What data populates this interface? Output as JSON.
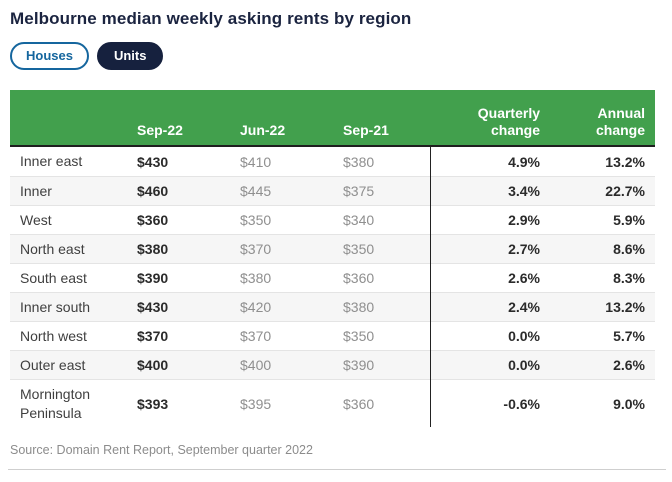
{
  "title": "Melbourne median weekly asking rents by region",
  "toggles": {
    "houses_label": "Houses",
    "units_label": "Units",
    "selected": "Units"
  },
  "chart_data": {
    "type": "table",
    "title": "Melbourne median weekly asking rents by region",
    "columns": [
      "",
      "Sep-22",
      "Jun-22",
      "Sep-21",
      "Quarterly change",
      "Annual change"
    ],
    "header": {
      "sep22": "Sep-22",
      "jun22": "Jun-22",
      "sep21": "Sep-21",
      "quarterly": "Quarterly\nchange",
      "annual": "Annual\nchange"
    },
    "rows": [
      {
        "region": "Inner east",
        "sep22": "$430",
        "jun22": "$410",
        "sep21": "$380",
        "quarterly": "4.9%",
        "annual": "13.2%"
      },
      {
        "region": "Inner",
        "sep22": "$460",
        "jun22": "$445",
        "sep21": "$375",
        "quarterly": "3.4%",
        "annual": "22.7%"
      },
      {
        "region": "West",
        "sep22": "$360",
        "jun22": "$350",
        "sep21": "$340",
        "quarterly": "2.9%",
        "annual": "5.9%"
      },
      {
        "region": "North east",
        "sep22": "$380",
        "jun22": "$370",
        "sep21": "$350",
        "quarterly": "2.7%",
        "annual": "8.6%"
      },
      {
        "region": "South east",
        "sep22": "$390",
        "jun22": "$380",
        "sep21": "$360",
        "quarterly": "2.6%",
        "annual": "8.3%"
      },
      {
        "region": "Inner south",
        "sep22": "$430",
        "jun22": "$420",
        "sep21": "$380",
        "quarterly": "2.4%",
        "annual": "13.2%"
      },
      {
        "region": "North west",
        "sep22": "$370",
        "jun22": "$370",
        "sep21": "$350",
        "quarterly": "0.0%",
        "annual": "5.7%"
      },
      {
        "region": "Outer east",
        "sep22": "$400",
        "jun22": "$400",
        "sep21": "$390",
        "quarterly": "0.0%",
        "annual": "2.6%"
      },
      {
        "region": "Mornington Peninsula",
        "sep22": "$393",
        "jun22": "$395",
        "sep21": "$360",
        "quarterly": "-0.6%",
        "annual": "9.0%"
      }
    ]
  },
  "source_note": "Source: Domain Rent Report, September quarter 2022",
  "colors": {
    "header_green": "#42a04d",
    "title_navy": "#1b2440",
    "units_pill_navy": "#16213e",
    "houses_pill_blue": "#15669e",
    "stripe_gray": "#f6f6f6",
    "muted_value_gray": "#8f8f8f",
    "strong_value": "#2b2b2b"
  }
}
